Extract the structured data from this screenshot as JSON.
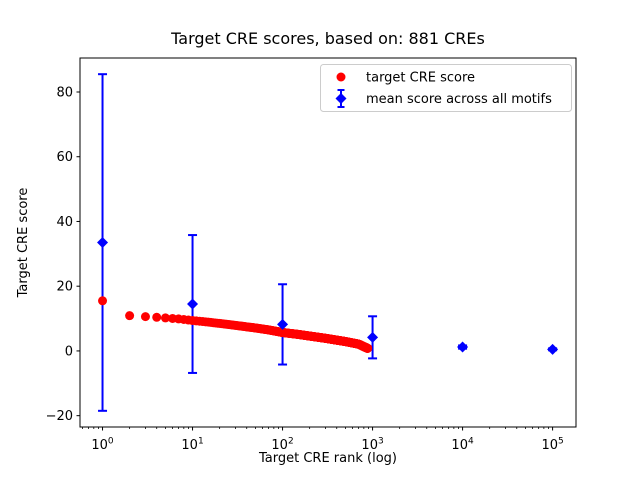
{
  "chart_data": {
    "type": "scatter",
    "title": "Target CRE scores, based on: 881 CREs",
    "xlabel": "Target CRE rank (log)",
    "ylabel": "Target CRE score",
    "x_scale": "log",
    "xlim": [
      0.562,
      182000
    ],
    "ylim": [
      -23.5,
      90.5
    ],
    "xticks": [
      1,
      10,
      100,
      1000,
      10000,
      100000
    ],
    "yticks": [
      -20,
      0,
      20,
      40,
      60,
      80
    ],
    "grid": false,
    "legend_position": "upper right",
    "background_color": "#ffffff",
    "series": [
      {
        "name": "target CRE score",
        "marker": "circle",
        "color": "#ff0000",
        "n_points": 881,
        "anchors": [
          [
            1,
            15.5
          ],
          [
            2,
            10.9
          ],
          [
            3,
            10.6
          ],
          [
            4,
            10.4
          ],
          [
            5,
            10.2
          ],
          [
            7,
            9.9
          ],
          [
            10,
            9.4
          ],
          [
            15,
            8.9
          ],
          [
            20,
            8.5
          ],
          [
            30,
            7.9
          ],
          [
            50,
            7.1
          ],
          [
            70,
            6.5
          ],
          [
            100,
            5.7
          ],
          [
            150,
            5.1
          ],
          [
            200,
            4.6
          ],
          [
            300,
            3.9
          ],
          [
            500,
            2.9
          ],
          [
            700,
            2.1
          ],
          [
            881,
            0.8
          ]
        ]
      },
      {
        "name": "mean score across all motifs",
        "marker": "diamond",
        "color": "#0000ff",
        "x": [
          1,
          10,
          100,
          1000,
          10000,
          100000
        ],
        "y": [
          33.5,
          14.5,
          8.2,
          4.2,
          1.2,
          0.5
        ],
        "yerr": [
          52,
          21.3,
          12.4,
          6.5,
          0.5,
          0.3
        ]
      }
    ]
  }
}
